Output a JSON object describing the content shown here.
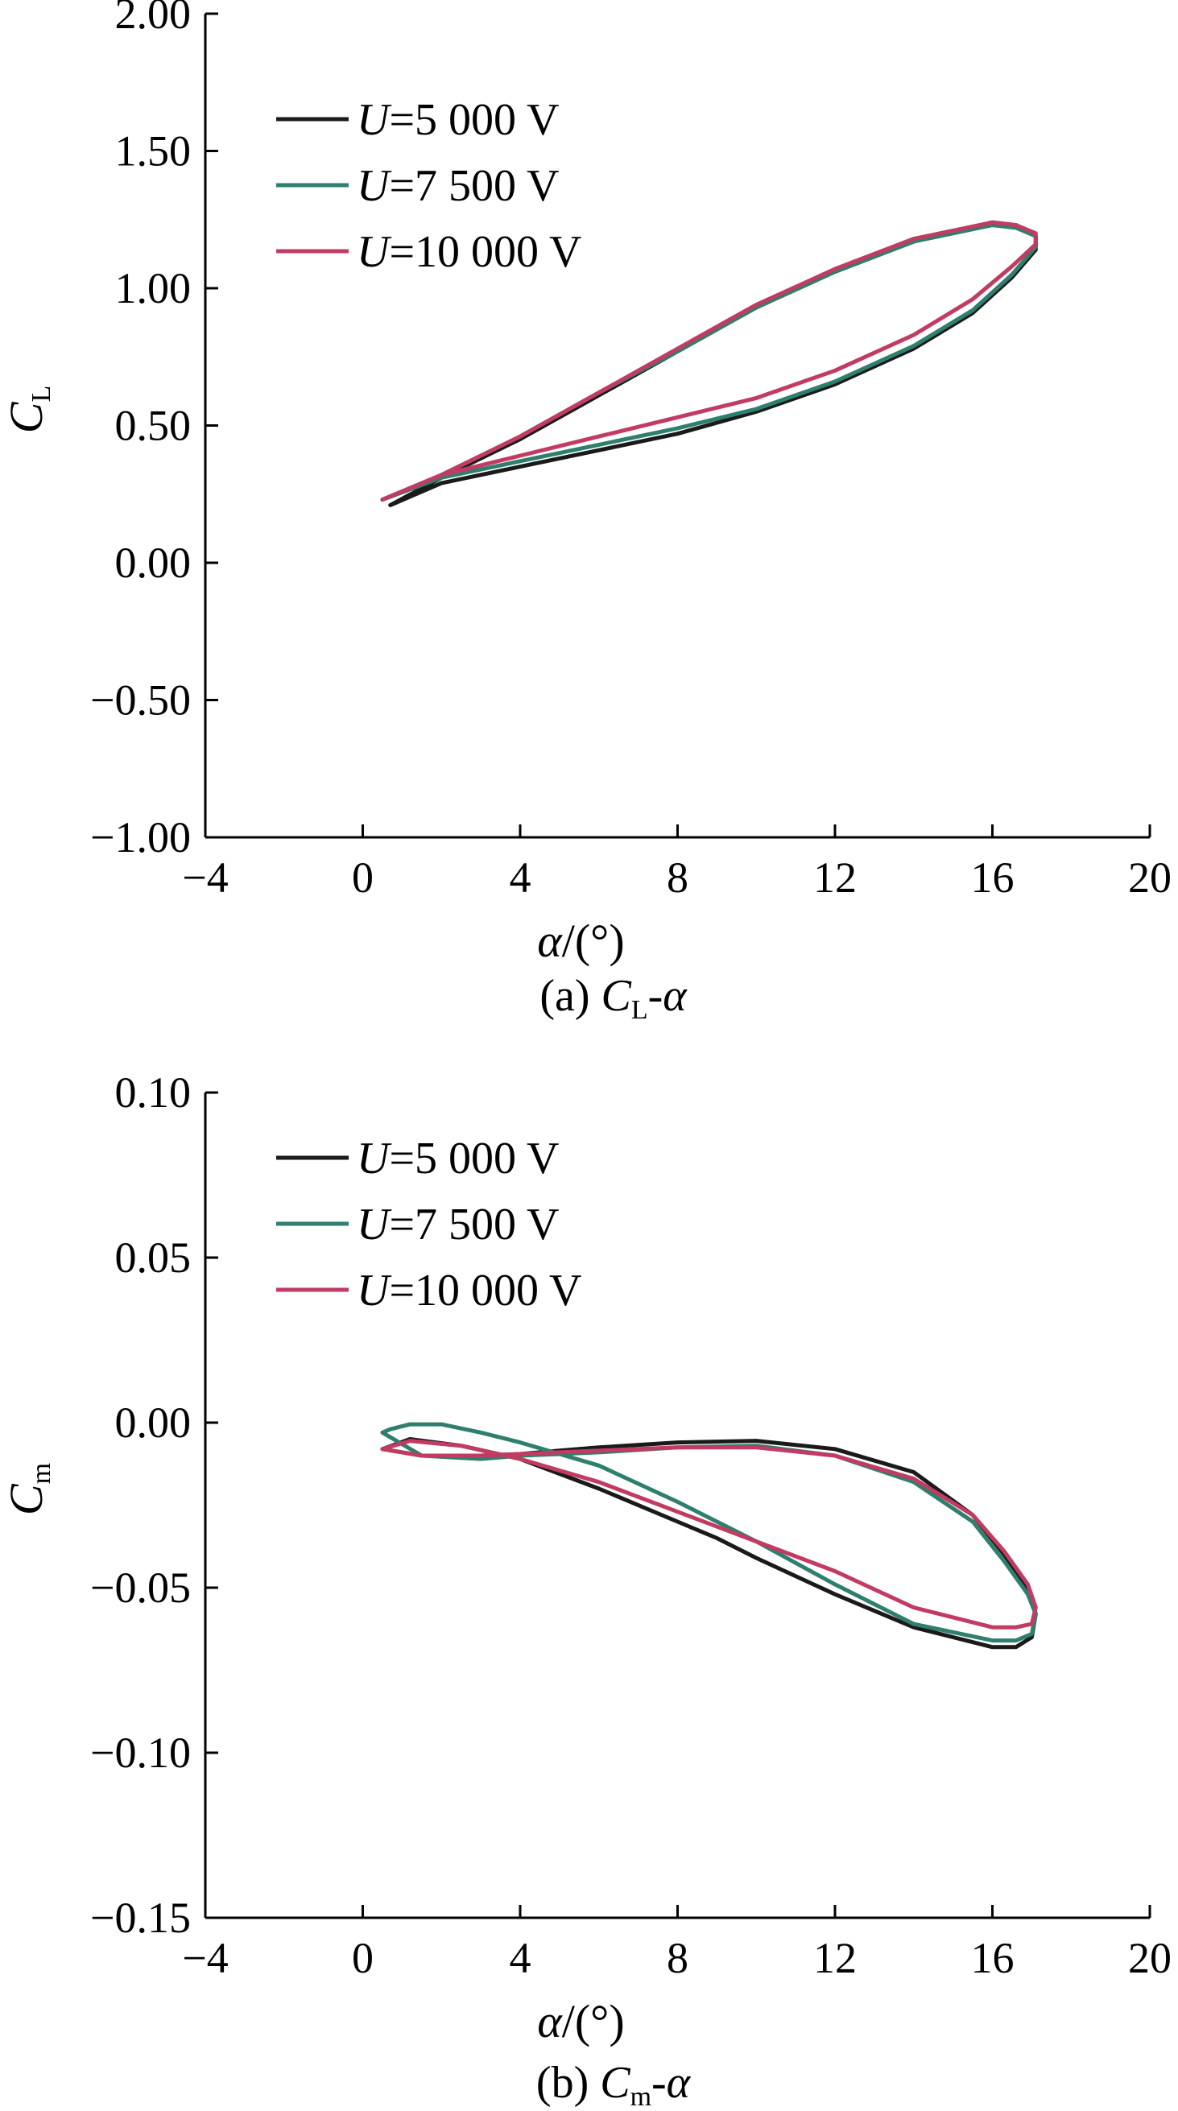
{
  "chart_data": [
    {
      "type": "line",
      "caption": {
        "prefix": "(a) ",
        "main": "C",
        "sub": "L",
        "suffix": "-α"
      },
      "ylabel": {
        "main": "C",
        "sub": "L"
      },
      "xlabel": {
        "var": "α",
        "unit": "/(°)"
      },
      "xlim": [
        -4,
        20
      ],
      "ylim": [
        -1.0,
        2.0
      ],
      "xticks": [
        -4,
        0,
        4,
        8,
        12,
        16,
        20
      ],
      "xtick_labels": [
        "−4",
        "0",
        "4",
        "8",
        "12",
        "16",
        "20"
      ],
      "yticks": [
        -1.0,
        -0.5,
        0.0,
        0.5,
        1.0,
        1.5,
        2.0
      ],
      "ytick_labels": [
        "−1.00",
        "−0.50",
        "0.00",
        "0.50",
        "1.00",
        "1.50",
        "2.00"
      ],
      "legend_position": "top-left",
      "series": [
        {
          "name": "U=5 000 V",
          "legend_var": "U",
          "legend_rest": "=5 000 V",
          "color": "#1a1a1a",
          "x": [
            0.7,
            2,
            4,
            6,
            8,
            10,
            12,
            14,
            15.5,
            16.5,
            17.1,
            17.1,
            16.6,
            16,
            14,
            12,
            10,
            8,
            6,
            4,
            2,
            0.7
          ],
          "y": [
            0.21,
            0.29,
            0.35,
            0.41,
            0.47,
            0.55,
            0.65,
            0.78,
            0.91,
            1.04,
            1.14,
            1.19,
            1.23,
            1.24,
            1.17,
            1.06,
            0.93,
            0.77,
            0.61,
            0.45,
            0.31,
            0.21
          ]
        },
        {
          "name": "U=7 500 V",
          "legend_var": "U",
          "legend_rest": "=7 500 V",
          "color": "#2e7f6d",
          "x": [
            0.5,
            2,
            4,
            6,
            8,
            10,
            12,
            14,
            15.5,
            16.5,
            17.1,
            17.1,
            16.6,
            16,
            14,
            12,
            10,
            8,
            6,
            4,
            2,
            0.5
          ],
          "y": [
            0.23,
            0.31,
            0.37,
            0.43,
            0.49,
            0.56,
            0.66,
            0.79,
            0.92,
            1.05,
            1.15,
            1.19,
            1.22,
            1.23,
            1.17,
            1.06,
            0.93,
            0.77,
            0.62,
            0.46,
            0.32,
            0.23
          ]
        },
        {
          "name": "U=10 000 V",
          "legend_var": "U",
          "legend_rest": "=10 000 V",
          "color": "#c23b62",
          "x": [
            0.5,
            2,
            4,
            6,
            8,
            10,
            12,
            14,
            15.5,
            16.5,
            17.1,
            17.1,
            16.6,
            16,
            14,
            12,
            10,
            8,
            6,
            4,
            2,
            0.5
          ],
          "y": [
            0.23,
            0.32,
            0.39,
            0.46,
            0.53,
            0.6,
            0.7,
            0.83,
            0.96,
            1.08,
            1.16,
            1.2,
            1.23,
            1.24,
            1.18,
            1.07,
            0.94,
            0.78,
            0.62,
            0.46,
            0.32,
            0.23
          ]
        }
      ]
    },
    {
      "type": "line",
      "caption": {
        "prefix": "(b) ",
        "main": "C",
        "sub": "m",
        "suffix": "-α"
      },
      "ylabel": {
        "main": "C",
        "sub": "m"
      },
      "xlabel": {
        "var": "α",
        "unit": "/(°)"
      },
      "xlim": [
        -4,
        20
      ],
      "ylim": [
        -0.15,
        0.1
      ],
      "xticks": [
        -4,
        0,
        4,
        8,
        12,
        16,
        20
      ],
      "xtick_labels": [
        "−4",
        "0",
        "4",
        "8",
        "12",
        "16",
        "20"
      ],
      "yticks": [
        -0.15,
        -0.1,
        -0.05,
        0.0,
        0.05,
        0.1
      ],
      "ytick_labels": [
        "−0.15",
        "−0.10",
        "−0.05",
        "0.00",
        "0.05",
        "0.10"
      ],
      "legend_position": "top-left",
      "series": [
        {
          "name": "U=5 000 V",
          "legend_var": "U",
          "legend_rest": "=5 000 V",
          "color": "#1a1a1a",
          "x": [
            0.5,
            1.5,
            3,
            4,
            5,
            6,
            8,
            10,
            12,
            14,
            15.5,
            16.3,
            16.9,
            17.1,
            17.0,
            16.6,
            16,
            14,
            12,
            10,
            9,
            8,
            6,
            4,
            2.5,
            1.2,
            0.5
          ],
          "y": [
            -0.008,
            -0.01,
            -0.01,
            -0.0095,
            -0.0085,
            -0.0075,
            -0.006,
            -0.0055,
            -0.008,
            -0.015,
            -0.028,
            -0.04,
            -0.05,
            -0.058,
            -0.065,
            -0.068,
            -0.068,
            -0.062,
            -0.052,
            -0.041,
            -0.035,
            -0.03,
            -0.02,
            -0.011,
            -0.007,
            -0.005,
            -0.008
          ]
        },
        {
          "name": "U=7 500 V",
          "legend_var": "U",
          "legend_rest": "=7 500 V",
          "color": "#2e7f6d",
          "x": [
            0.5,
            1.5,
            3,
            4,
            5,
            6,
            8,
            10,
            12,
            14,
            15.5,
            16.3,
            16.9,
            17.1,
            17.0,
            16.6,
            16,
            14,
            12,
            10,
            8,
            6,
            4,
            3,
            2,
            1.2,
            0.7,
            0.5
          ],
          "y": [
            -0.003,
            -0.01,
            -0.011,
            -0.01,
            -0.0095,
            -0.009,
            -0.0075,
            -0.007,
            -0.01,
            -0.018,
            -0.03,
            -0.042,
            -0.052,
            -0.058,
            -0.064,
            -0.066,
            -0.066,
            -0.061,
            -0.049,
            -0.036,
            -0.024,
            -0.013,
            -0.006,
            -0.003,
            -0.0005,
            -0.0005,
            -0.002,
            -0.003
          ]
        },
        {
          "name": "U=10 000 V",
          "legend_var": "U",
          "legend_rest": "=10 000 V",
          "color": "#c23b62",
          "x": [
            0.5,
            1.5,
            3,
            4,
            5,
            6,
            8,
            10,
            12,
            14,
            15.5,
            16.3,
            16.9,
            17.1,
            17.0,
            16.6,
            16,
            14,
            12,
            10,
            8,
            6,
            4,
            2.5,
            1.2,
            0.5
          ],
          "y": [
            -0.008,
            -0.01,
            -0.01,
            -0.0095,
            -0.009,
            -0.0085,
            -0.0075,
            -0.0075,
            -0.01,
            -0.017,
            -0.028,
            -0.039,
            -0.049,
            -0.056,
            -0.061,
            -0.062,
            -0.062,
            -0.056,
            -0.045,
            -0.036,
            -0.027,
            -0.018,
            -0.011,
            -0.007,
            -0.0055,
            -0.008
          ]
        }
      ]
    }
  ]
}
